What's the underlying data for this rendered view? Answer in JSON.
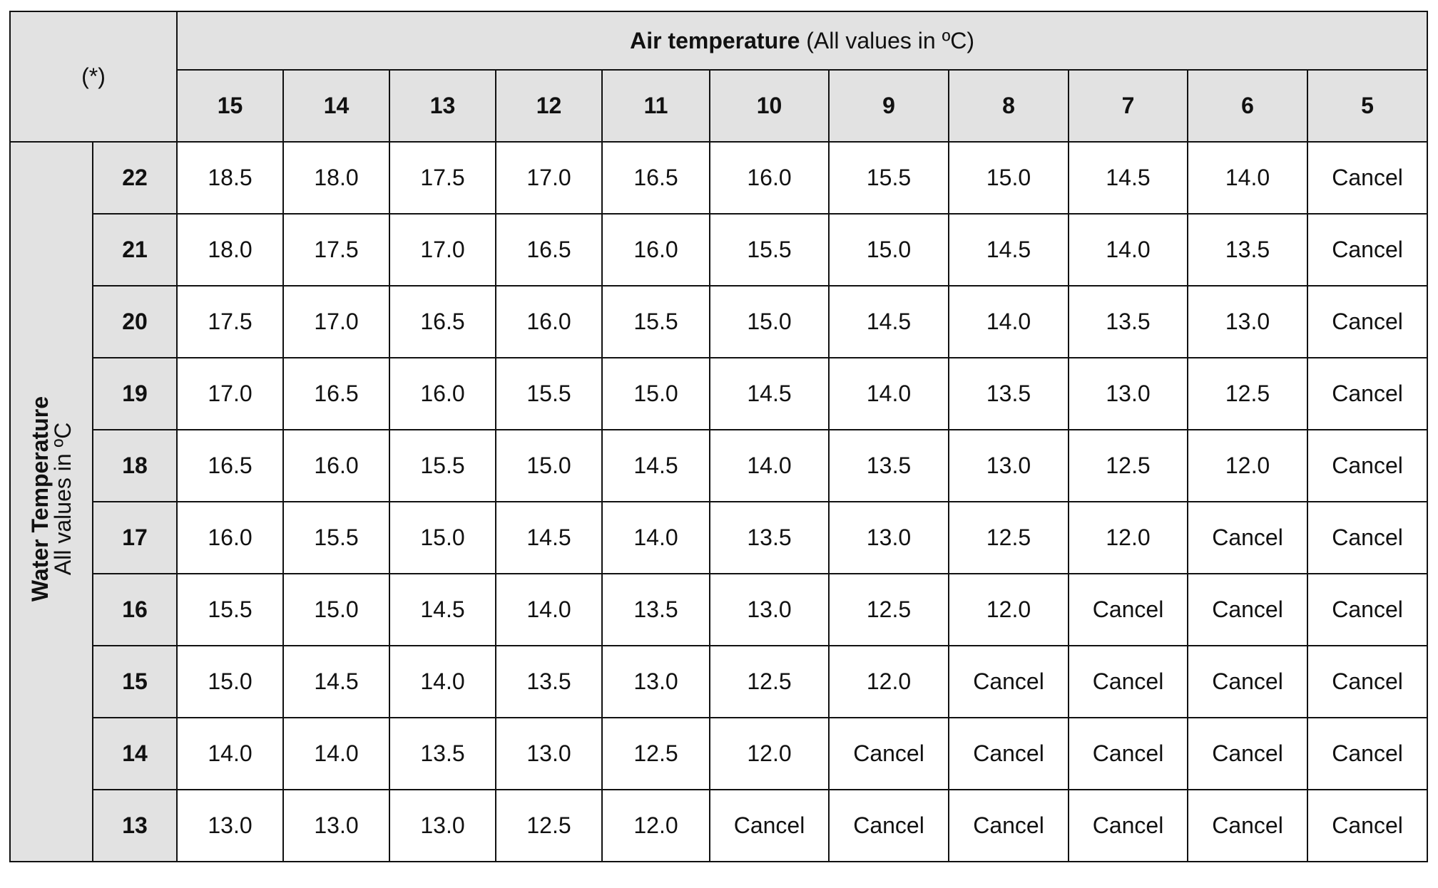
{
  "corner": "(*)",
  "air_header": {
    "title": "Air temperature",
    "note": "(All values in ºC)"
  },
  "columns": [
    "15",
    "14",
    "13",
    "12",
    "11",
    "10",
    "9",
    "8",
    "7",
    "6",
    "5"
  ],
  "water_header": {
    "title": "Water Temperature",
    "note": "All values in ºC"
  },
  "rows": [
    {
      "label": "22",
      "cells": [
        "18.5",
        "18.0",
        "17.5",
        "17.0",
        "16.5",
        "16.0",
        "15.5",
        "15.0",
        "14.5",
        "14.0",
        "Cancel"
      ]
    },
    {
      "label": "21",
      "cells": [
        "18.0",
        "17.5",
        "17.0",
        "16.5",
        "16.0",
        "15.5",
        "15.0",
        "14.5",
        "14.0",
        "13.5",
        "Cancel"
      ]
    },
    {
      "label": "20",
      "cells": [
        "17.5",
        "17.0",
        "16.5",
        "16.0",
        "15.5",
        "15.0",
        "14.5",
        "14.0",
        "13.5",
        "13.0",
        "Cancel"
      ]
    },
    {
      "label": "19",
      "cells": [
        "17.0",
        "16.5",
        "16.0",
        "15.5",
        "15.0",
        "14.5",
        "14.0",
        "13.5",
        "13.0",
        "12.5",
        "Cancel"
      ]
    },
    {
      "label": "18",
      "cells": [
        "16.5",
        "16.0",
        "15.5",
        "15.0",
        "14.5",
        "14.0",
        "13.5",
        "13.0",
        "12.5",
        "12.0",
        "Cancel"
      ]
    },
    {
      "label": "17",
      "cells": [
        "16.0",
        "15.5",
        "15.0",
        "14.5",
        "14.0",
        "13.5",
        "13.0",
        "12.5",
        "12.0",
        "Cancel",
        "Cancel"
      ]
    },
    {
      "label": "16",
      "cells": [
        "15.5",
        "15.0",
        "14.5",
        "14.0",
        "13.5",
        "13.0",
        "12.5",
        "12.0",
        "Cancel",
        "Cancel",
        "Cancel"
      ]
    },
    {
      "label": "15",
      "cells": [
        "15.0",
        "14.5",
        "14.0",
        "13.5",
        "13.0",
        "12.5",
        "12.0",
        "Cancel",
        "Cancel",
        "Cancel",
        "Cancel"
      ]
    },
    {
      "label": "14",
      "cells": [
        "14.0",
        "14.0",
        "13.5",
        "13.0",
        "12.5",
        "12.0",
        "Cancel",
        "Cancel",
        "Cancel",
        "Cancel",
        "Cancel"
      ]
    },
    {
      "label": "13",
      "cells": [
        "13.0",
        "13.0",
        "13.0",
        "12.5",
        "12.0",
        "Cancel",
        "Cancel",
        "Cancel",
        "Cancel",
        "Cancel",
        "Cancel"
      ]
    }
  ]
}
